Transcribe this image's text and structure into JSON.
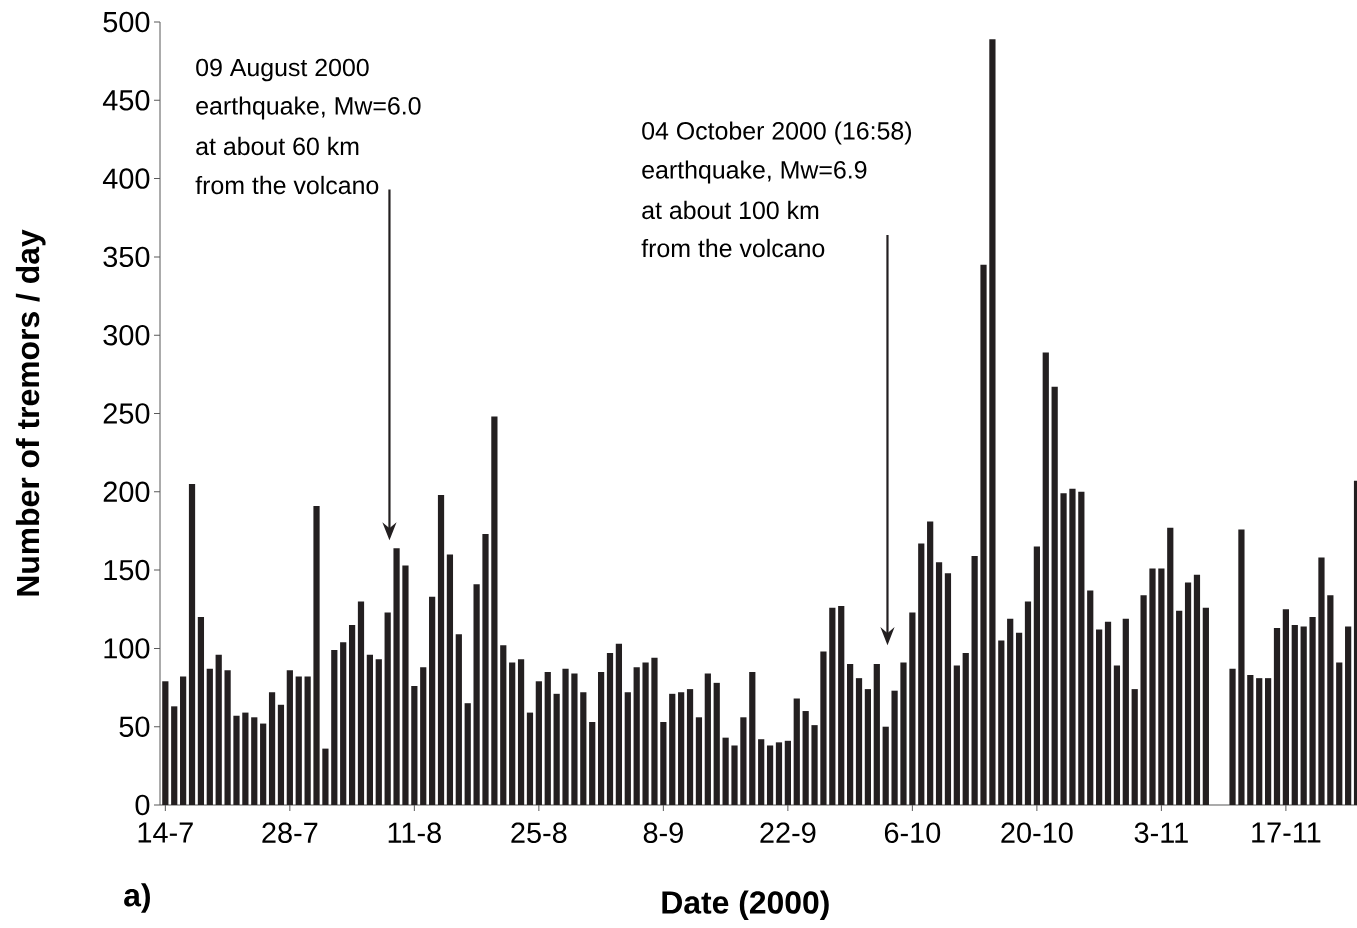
{
  "chart_data": {
    "type": "bar",
    "xlabel": "Date (2000)",
    "ylabel": "Number of tremors / day",
    "categories": [
      "14-7",
      null,
      null,
      null,
      null,
      null,
      null,
      null,
      null,
      null,
      null,
      null,
      null,
      null,
      "28-7",
      null,
      null,
      null,
      null,
      null,
      null,
      null,
      null,
      null,
      null,
      null,
      null,
      null,
      "11-8",
      null,
      null,
      null,
      null,
      null,
      null,
      null,
      null,
      null,
      null,
      null,
      null,
      null,
      "25-8",
      null,
      null,
      null,
      null,
      null,
      null,
      null,
      null,
      null,
      null,
      null,
      null,
      null,
      "8-9",
      null,
      null,
      null,
      null,
      null,
      null,
      null,
      null,
      null,
      null,
      null,
      null,
      null,
      "22-9",
      null,
      null,
      null,
      null,
      null,
      null,
      null,
      null,
      null,
      null,
      null,
      null,
      null,
      "6-10",
      null,
      null,
      null,
      null,
      null,
      null,
      null,
      null,
      null,
      null,
      null,
      null,
      null,
      "20-10",
      null,
      null,
      null,
      null,
      null,
      null,
      null,
      null,
      null,
      null,
      null,
      null,
      null,
      "3-11",
      null,
      null,
      null,
      null,
      null,
      null,
      null,
      null,
      null,
      null,
      null,
      null,
      null,
      "17-11",
      null,
      null,
      null,
      null,
      null,
      null,
      null,
      null
    ],
    "values": [
      79,
      63,
      82,
      205,
      120,
      87,
      96,
      86,
      57,
      59,
      56,
      52,
      72,
      64,
      86,
      82,
      82,
      191,
      36,
      99,
      104,
      115,
      130,
      96,
      93,
      123,
      164,
      153,
      76,
      88,
      133,
      198,
      160,
      109,
      65,
      141,
      173,
      248,
      102,
      91,
      93,
      59,
      79,
      85,
      71,
      87,
      84,
      72,
      53,
      85,
      97,
      103,
      72,
      88,
      91,
      94,
      53,
      71,
      72,
      74,
      56,
      84,
      78,
      43,
      38,
      56,
      85,
      42,
      38,
      40,
      41,
      68,
      60,
      51,
      98,
      126,
      127,
      90,
      81,
      74,
      90,
      50,
      73,
      91,
      123,
      167,
      181,
      155,
      148,
      89,
      97,
      159,
      345,
      489,
      105,
      119,
      110,
      130,
      165,
      289,
      267,
      199,
      202,
      200,
      137,
      112,
      117,
      89,
      119,
      74,
      134,
      151,
      151,
      177,
      124,
      142,
      147,
      126,
      null,
      null,
      87,
      176,
      83,
      81,
      81,
      113,
      125,
      115,
      114,
      120,
      158,
      134,
      91,
      114,
      207
    ],
    "color": "#231f20",
    "ylim": [
      0,
      500
    ],
    "yticks": [
      0,
      50,
      100,
      150,
      200,
      250,
      300,
      350,
      400,
      450,
      500
    ],
    "annotations": [
      "09 August 2000",
      "earthquake, Mw=6.0",
      "at about 60 km",
      "from the volcano",
      "04 October 2000 (16:58)",
      "earthquake, Mw=6.9",
      "at about 100 km",
      "from the volcano",
      "a)"
    ]
  }
}
